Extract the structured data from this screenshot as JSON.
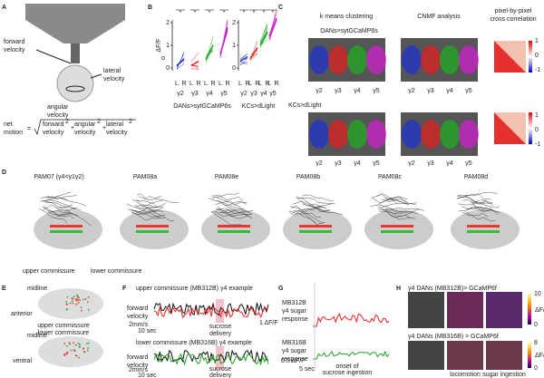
{
  "A": {
    "label": "A",
    "forward": [
      "forward",
      "velocity"
    ],
    "angular": [
      "angular",
      "velocity"
    ],
    "lateral": [
      "lateral",
      "velocity"
    ],
    "formula": {
      "lhs": [
        "net",
        "motion"
      ],
      "eq": "=",
      "plus": "+",
      "terms": [
        {
          "name": "forward",
          "exp": "2",
          "unit": "velocity"
        },
        {
          "name": "angular",
          "exp": "2",
          "unit": "velocity"
        },
        {
          "name": "lateral",
          "exp": "2",
          "unit": "velocity"
        }
      ]
    }
  },
  "B": {
    "label": "B",
    "y_title": "ΔF/F",
    "y_sub": "o",
    "yticks": [
      "0",
      "1",
      "2"
    ],
    "sides": [
      "L",
      "R"
    ],
    "groups": [
      "γ2",
      "γ3",
      "γ4",
      "γ5"
    ],
    "sig": "*",
    "titles": [
      "DANs>sytGCaMP6s",
      "KCs>dLight"
    ]
  },
  "C": {
    "label": "C",
    "col_titles": [
      "k means clustering",
      "CNMF analysis"
    ],
    "corr_title": [
      "pixel-by-pixel",
      "cross correlation"
    ],
    "rows": [
      "DANs>sytGCaMP6s",
      "KCs>dLight"
    ],
    "groups": [
      "γ2",
      "γ3",
      "γ4",
      "γ5"
    ],
    "colorbar": [
      "1",
      "0",
      "-1"
    ]
  },
  "D": {
    "label": "D",
    "titles": [
      "PAM07 (γ4<γ1γ2)",
      "PAM08a",
      "PAM08e",
      "PAM08b",
      "PAM08c",
      "PAM08d"
    ],
    "legend": [
      "upper commissure",
      "lower commissure"
    ]
  },
  "E": {
    "label": "E",
    "midline": "midline",
    "anterior": "anterior",
    "ventral": "ventral",
    "legend": [
      "upper commissure",
      "lower commissure"
    ]
  },
  "F": {
    "label": "F",
    "titles": [
      "upper commissure (MB312B) γ4 example",
      "lower commissure (MB316B) γ4 example"
    ],
    "ylabel": [
      "forward",
      "velocity"
    ],
    "speed": "2mm/s",
    "time": "10 sec",
    "dff": "1 ΔF/F",
    "event": [
      "sucrose",
      "delivery"
    ]
  },
  "G": {
    "label": "G",
    "top": [
      "MB312B",
      "γ4 sugar",
      "response"
    ],
    "bottom": [
      "MB316B",
      "γ4 sugar",
      "response"
    ],
    "dff": "0.5 ΔF/F",
    "time": "5 sec",
    "event": [
      "onset of",
      "sucrose ingestion"
    ]
  },
  "H": {
    "label": "H",
    "titles": [
      "γ4 DANs (MB312B)> GCaMP6f",
      "γ4 DANs (MB316B) > GCaMP6f"
    ],
    "cb_top": [
      "10",
      "0"
    ],
    "cb_bottom": [
      "8",
      "0"
    ],
    "cb_title": "ΔF/F",
    "conditions": [
      "locomotion",
      "sugar ingestion"
    ]
  }
}
